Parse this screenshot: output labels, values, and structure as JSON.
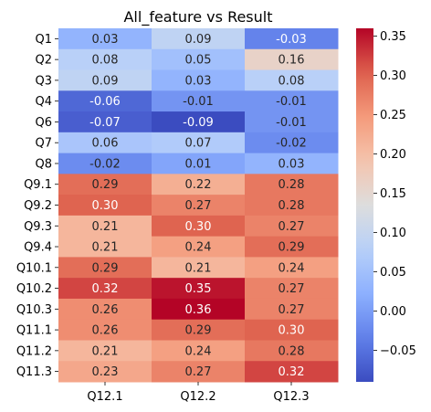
{
  "chart_data": {
    "type": "heatmap",
    "title": "All_feature vs Result",
    "xlabel": "",
    "ylabel": "",
    "x_categories": [
      "Q12.1",
      "Q12.2",
      "Q12.3"
    ],
    "y_categories": [
      "Q1",
      "Q2",
      "Q3",
      "Q4",
      "Q6",
      "Q7",
      "Q8",
      "Q9.1",
      "Q9.2",
      "Q9.3",
      "Q9.4",
      "Q10.1",
      "Q10.2",
      "Q10.3",
      "Q11.1",
      "Q11.2",
      "Q11.3"
    ],
    "values": [
      [
        0.03,
        0.09,
        -0.03
      ],
      [
        0.08,
        0.05,
        0.16
      ],
      [
        0.09,
        0.03,
        0.08
      ],
      [
        -0.06,
        -0.01,
        -0.01
      ],
      [
        -0.07,
        -0.09,
        -0.01
      ],
      [
        0.06,
        0.07,
        -0.02
      ],
      [
        -0.02,
        0.01,
        0.03
      ],
      [
        0.29,
        0.22,
        0.28
      ],
      [
        0.3,
        0.27,
        0.28
      ],
      [
        0.21,
        0.3,
        0.27
      ],
      [
        0.21,
        0.24,
        0.29
      ],
      [
        0.29,
        0.21,
        0.24
      ],
      [
        0.32,
        0.35,
        0.27
      ],
      [
        0.26,
        0.36,
        0.27
      ],
      [
        0.26,
        0.29,
        0.3
      ],
      [
        0.21,
        0.24,
        0.28
      ],
      [
        0.23,
        0.27,
        0.32
      ]
    ],
    "value_labels": [
      [
        "0.03",
        "0.09",
        "-0.03"
      ],
      [
        "0.08",
        "0.05",
        "0.16"
      ],
      [
        "0.09",
        "0.03",
        "0.08"
      ],
      [
        "-0.06",
        "-0.01",
        "-0.01"
      ],
      [
        "-0.07",
        "-0.09",
        "-0.01"
      ],
      [
        "0.06",
        "0.07",
        "-0.02"
      ],
      [
        "-0.02",
        "0.01",
        "0.03"
      ],
      [
        "0.29",
        "0.22",
        "0.28"
      ],
      [
        "0.30",
        "0.27",
        "0.28"
      ],
      [
        "0.21",
        "0.30",
        "0.27"
      ],
      [
        "0.21",
        "0.24",
        "0.29"
      ],
      [
        "0.29",
        "0.21",
        "0.24"
      ],
      [
        "0.32",
        "0.35",
        "0.27"
      ],
      [
        "0.26",
        "0.36",
        "0.27"
      ],
      [
        "0.26",
        "0.29",
        "0.30"
      ],
      [
        "0.21",
        "0.24",
        "0.28"
      ],
      [
        "0.23",
        "0.27",
        "0.32"
      ]
    ],
    "colormap": "coolwarm",
    "color_range": [
      -0.09,
      0.36
    ],
    "colorbar_ticks": [
      -0.05,
      0.0,
      0.05,
      0.1,
      0.15,
      0.2,
      0.25,
      0.3,
      0.35
    ],
    "colorbar_tick_labels": [
      "−0.05",
      "0.00",
      "0.05",
      "0.10",
      "0.15",
      "0.20",
      "0.25",
      "0.30",
      "0.35"
    ],
    "grid": false,
    "legend": "colorbar-right"
  }
}
